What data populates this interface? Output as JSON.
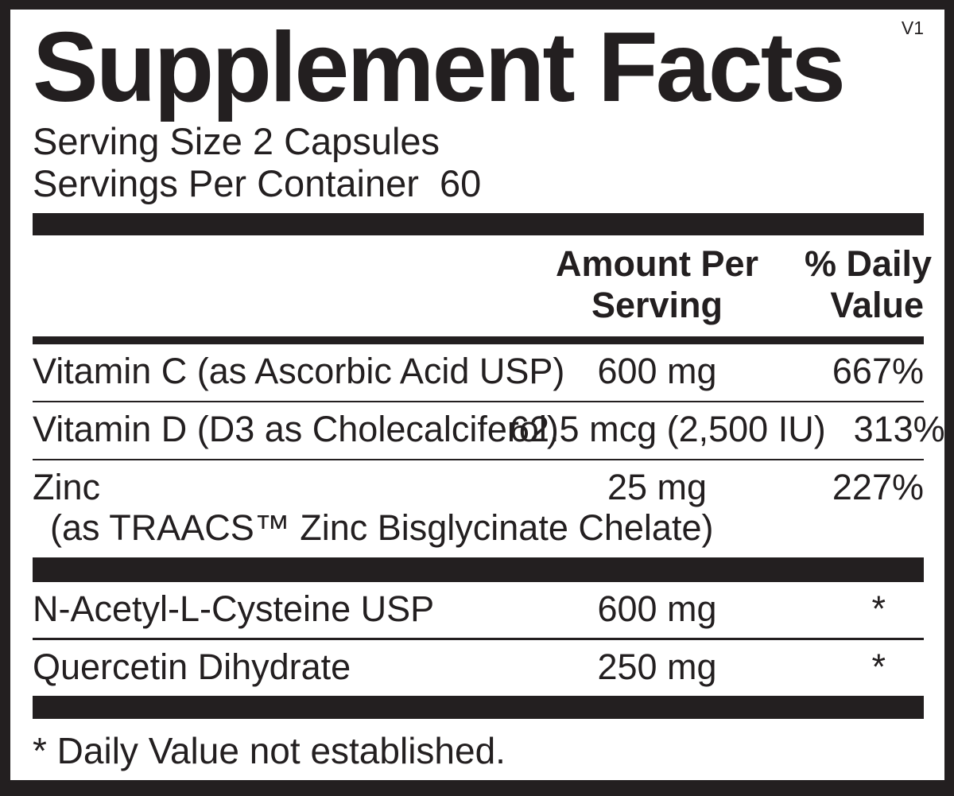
{
  "label": {
    "title": "Supplement Facts",
    "version": "V1",
    "serving_size": "Serving Size 2 Capsules",
    "servings_per_container": "Servings Per Container  60",
    "footnote": "* Daily Value not established."
  },
  "header": {
    "amount_line1": "Amount Per",
    "amount_line2": "Serving",
    "dv_line1": "% Daily",
    "dv_line2": "Value"
  },
  "main_rows": [
    {
      "name": "Vitamin C (as Ascorbic Acid USP)",
      "amount": "600 mg",
      "dv": "667%"
    },
    {
      "name": "Vitamin D (D3 as Cholecalciferol)",
      "amount": "62.5 mcg (2,500 IU)",
      "dv": "313%"
    },
    {
      "name": "Zinc",
      "subname": "(as TRAACS™ Zinc Bisglycinate Chelate)",
      "amount": "25 mg",
      "dv": "227%"
    }
  ],
  "other_rows": [
    {
      "name": "N-Acetyl-L-Cysteine USP",
      "amount": "600 mg",
      "dv": "*"
    },
    {
      "name": "Quercetin Dihydrate",
      "amount": "250 mg",
      "dv": "*"
    }
  ],
  "colors": {
    "ink": "#231f20",
    "paper": "#ffffff"
  }
}
